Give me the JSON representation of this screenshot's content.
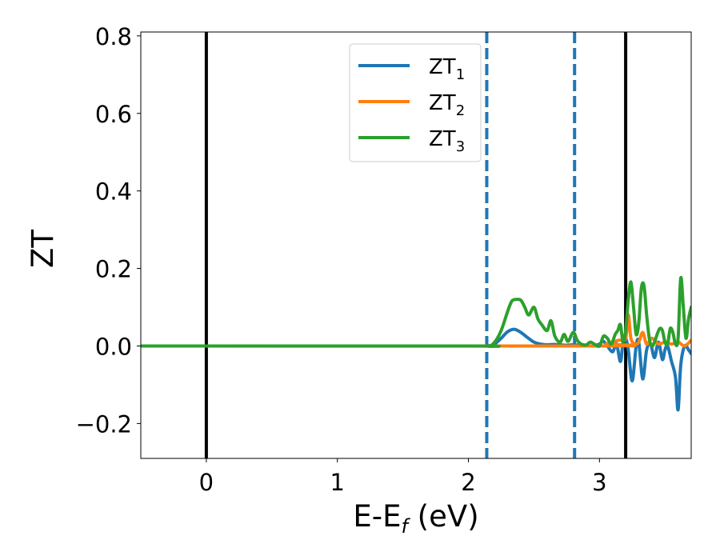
{
  "chart_data": {
    "type": "line",
    "title": "",
    "xlabel_parts": {
      "main": "E-E",
      "sub": "f",
      "tail": " (eV)"
    },
    "ylabel": "ZT",
    "xlim": [
      -0.5,
      3.7
    ],
    "ylim": [
      -0.29,
      0.81
    ],
    "xticks": [
      0,
      1,
      2,
      3
    ],
    "xtick_labels": [
      "0",
      "1",
      "2",
      "3"
    ],
    "yticks": [
      -0.2,
      0.0,
      0.2,
      0.4,
      0.6,
      0.8
    ],
    "ytick_labels": [
      "−0.2",
      "0.0",
      "0.2",
      "0.4",
      "0.6",
      "0.8"
    ],
    "grid": false,
    "legend_position": "top-center",
    "series": [
      {
        "name": "ZT",
        "name_sub": "1",
        "color": "#1f77b4",
        "x": [
          -0.5,
          2.0,
          2.15,
          2.2,
          2.25,
          2.3,
          2.35,
          2.4,
          2.45,
          2.5,
          2.55,
          2.6,
          2.65,
          2.7,
          2.75,
          2.8,
          2.85,
          2.9,
          2.95,
          3.0,
          3.03,
          3.06,
          3.1,
          3.13,
          3.16,
          3.18,
          3.2,
          3.22,
          3.25,
          3.28,
          3.3,
          3.33,
          3.36,
          3.39,
          3.42,
          3.45,
          3.48,
          3.5,
          3.52,
          3.55,
          3.58,
          3.6,
          3.62,
          3.65,
          3.68,
          3.7
        ],
        "y": [
          0.0,
          0.0,
          0.0,
          0.005,
          0.02,
          0.037,
          0.043,
          0.035,
          0.022,
          0.01,
          0.005,
          0.003,
          0.004,
          0.003,
          0.002,
          0.003,
          0.002,
          0.001,
          0.0,
          0.005,
          0.012,
          0.0,
          -0.015,
          0.005,
          -0.04,
          0.01,
          0.02,
          -0.01,
          -0.09,
          0.0,
          0.01,
          -0.085,
          -0.01,
          0.005,
          -0.03,
          0.01,
          -0.035,
          -0.01,
          0.0,
          -0.04,
          -0.08,
          -0.165,
          -0.05,
          0.0,
          -0.01,
          -0.02
        ]
      },
      {
        "name": "ZT",
        "name_sub": "2",
        "color": "#ff7f0e",
        "x": [
          -0.5,
          3.0,
          3.05,
          3.1,
          3.15,
          3.2,
          3.22,
          3.24,
          3.27,
          3.3,
          3.33,
          3.36,
          3.4,
          3.45,
          3.5,
          3.55,
          3.6,
          3.65,
          3.7
        ],
        "y": [
          0.0,
          0.0,
          0.005,
          0.01,
          0.015,
          0.02,
          0.08,
          0.02,
          0.005,
          0.01,
          0.035,
          0.005,
          0.02,
          0.005,
          0.01,
          0.005,
          0.01,
          0.0,
          0.015
        ]
      },
      {
        "name": "ZT",
        "name_sub": "3",
        "color": "#2ca02c",
        "x": [
          -0.5,
          2.0,
          2.15,
          2.2,
          2.25,
          2.3,
          2.33,
          2.36,
          2.4,
          2.43,
          2.46,
          2.5,
          2.53,
          2.56,
          2.6,
          2.63,
          2.66,
          2.7,
          2.73,
          2.76,
          2.8,
          2.83,
          2.86,
          2.9,
          2.93,
          2.96,
          3.0,
          3.03,
          3.06,
          3.09,
          3.12,
          3.14,
          3.16,
          3.18,
          3.2,
          3.22,
          3.24,
          3.26,
          3.28,
          3.3,
          3.32,
          3.34,
          3.36,
          3.38,
          3.4,
          3.42,
          3.44,
          3.46,
          3.48,
          3.5,
          3.52,
          3.54,
          3.56,
          3.58,
          3.6,
          3.62,
          3.64,
          3.66,
          3.68,
          3.7
        ],
        "y": [
          0.0,
          0.0,
          0.0,
          0.01,
          0.04,
          0.09,
          0.115,
          0.12,
          0.118,
          0.1,
          0.08,
          0.1,
          0.07,
          0.055,
          0.04,
          0.065,
          0.025,
          0.01,
          0.03,
          0.012,
          0.035,
          0.015,
          0.005,
          0.003,
          0.01,
          0.005,
          0.0,
          0.025,
          0.02,
          0.005,
          0.03,
          0.04,
          0.055,
          0.01,
          0.04,
          0.12,
          0.165,
          0.1,
          0.03,
          0.06,
          0.15,
          0.155,
          0.08,
          0.02,
          0.0,
          0.01,
          0.03,
          0.045,
          0.04,
          0.01,
          0.005,
          0.045,
          0.035,
          0.005,
          0.02,
          0.175,
          0.1,
          0.02,
          0.07,
          0.1
        ]
      }
    ],
    "vlines": [
      {
        "x": 0.0,
        "style": "solid",
        "color": "#000000"
      },
      {
        "x": 2.14,
        "style": "dashed",
        "color": "#1f77b4"
      },
      {
        "x": 2.81,
        "style": "dashed",
        "color": "#1f77b4"
      },
      {
        "x": 3.2,
        "style": "solid",
        "color": "#000000"
      }
    ]
  }
}
